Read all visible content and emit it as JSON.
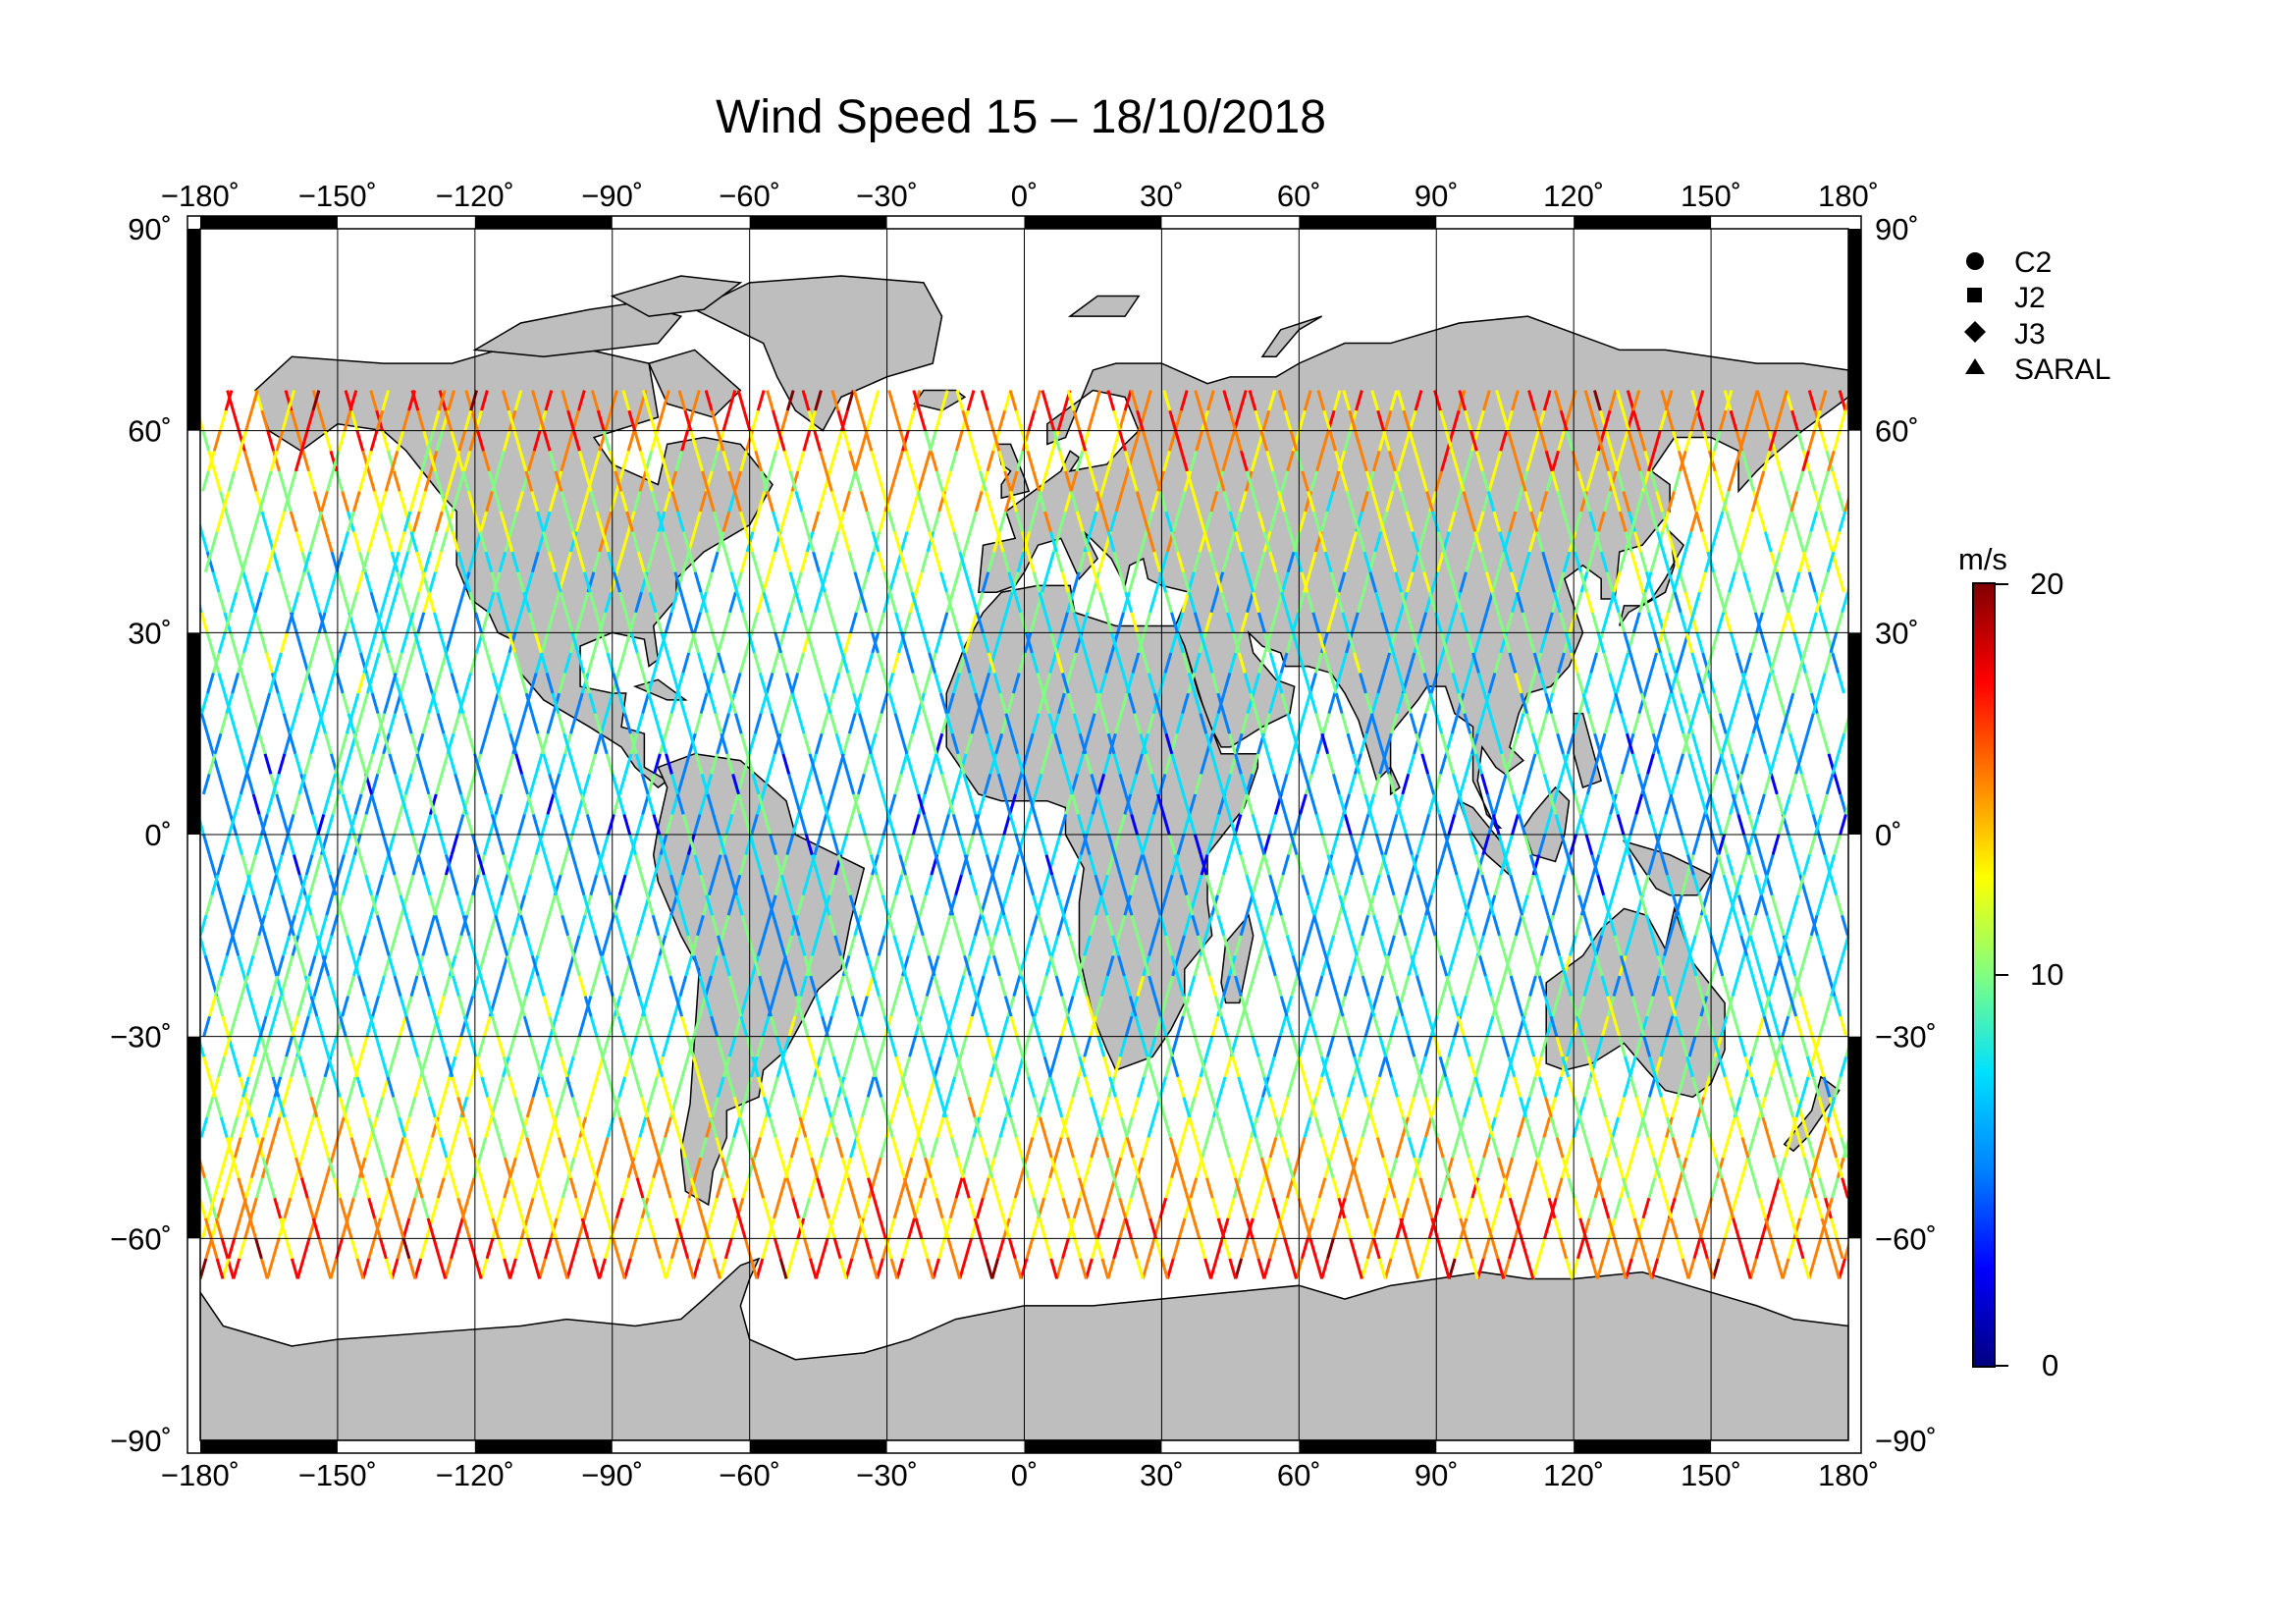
{
  "title": "Wind Speed 15 – 18/10/2018",
  "map": {
    "projection": "equirectangular",
    "lon_range": [
      -180,
      180
    ],
    "lat_range": [
      -90,
      90
    ],
    "grid": true,
    "lon_labels": [
      "−180˚",
      "−150˚",
      "−120˚",
      "−90˚",
      "−60˚",
      "−30˚",
      "0˚",
      "30˚",
      "60˚",
      "90˚",
      "120˚",
      "150˚",
      "180˚"
    ],
    "lat_labels": [
      "90˚",
      "60˚",
      "30˚",
      "0˚",
      "−30˚",
      "−60˚",
      "−90˚"
    ],
    "land_color": "#bebebe",
    "ocean_color": "#ffffff"
  },
  "legend": {
    "position": "top-right",
    "items": [
      {
        "symbol": "circle",
        "label": "C2"
      },
      {
        "symbol": "square",
        "label": "J2"
      },
      {
        "symbol": "diamond",
        "label": "J3"
      },
      {
        "symbol": "triangle",
        "label": "SARAL"
      }
    ]
  },
  "colorbar": {
    "unit": "m/s",
    "min": 0,
    "max": 20,
    "tick_labels": [
      "20",
      "10",
      "0"
    ],
    "colors": [
      "#00007f",
      "#0000ff",
      "#0080ff",
      "#00e0ff",
      "#80ff80",
      "#ffff00",
      "#ff8000",
      "#ff0000",
      "#7f0000"
    ]
  }
}
